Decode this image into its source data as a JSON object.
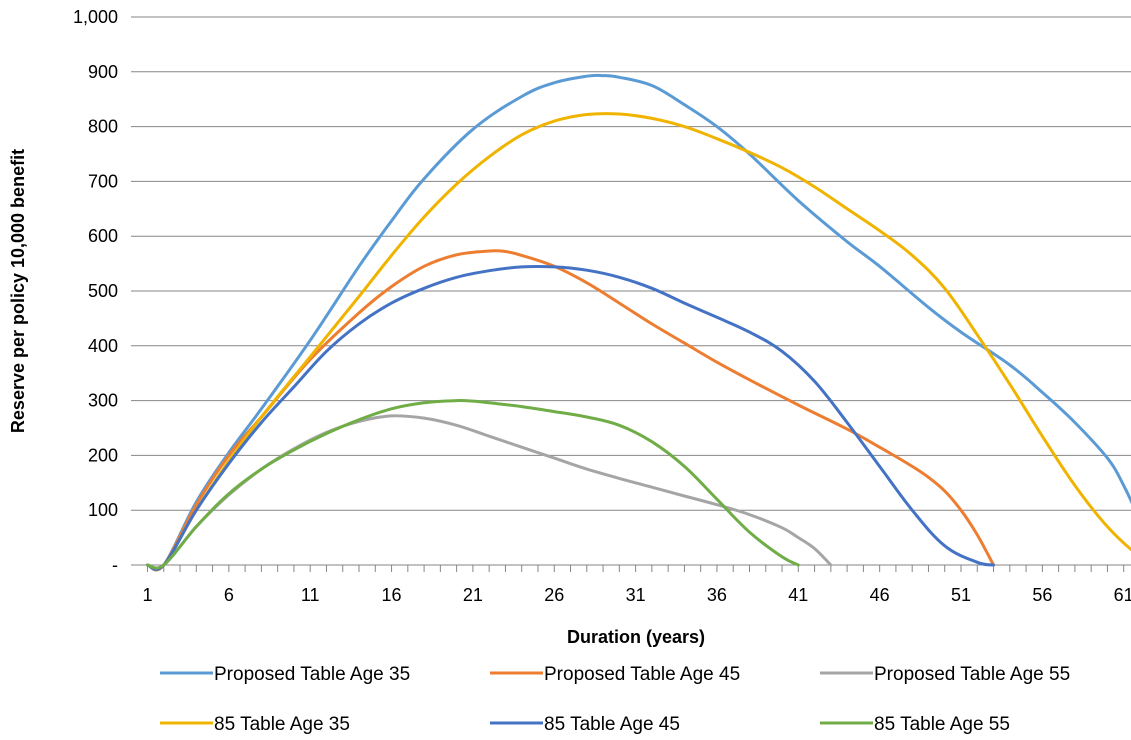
{
  "chart_data": {
    "type": "line",
    "xlabel": "Duration (years)",
    "ylabel": "Reserve per policy 10,000 benefit",
    "xlim": [
      1,
      63
    ],
    "ylim": [
      0,
      1000
    ],
    "x_tick_labels": [
      "1",
      "6",
      "11",
      "16",
      "21",
      "26",
      "31",
      "36",
      "41",
      "46",
      "51",
      "56",
      "61"
    ],
    "y_ticks": [
      {
        "value": 0,
        "label": "-"
      },
      {
        "value": 100,
        "label": "100"
      },
      {
        "value": 200,
        "label": "200"
      },
      {
        "value": 300,
        "label": "300"
      },
      {
        "value": 400,
        "label": "400"
      },
      {
        "value": 500,
        "label": "500"
      },
      {
        "value": 600,
        "label": "600"
      },
      {
        "value": 700,
        "label": "700"
      },
      {
        "value": 800,
        "label": "800"
      },
      {
        "value": 900,
        "label": "900"
      },
      {
        "value": 1000,
        "label": "1,000"
      }
    ],
    "grid": "horizontal",
    "legend_position": "bottom",
    "series": [
      {
        "name": "Proposed Table Age 35",
        "color": "#5B9BD5",
        "x": [
          1,
          2,
          4,
          6,
          8,
          11,
          14,
          16,
          18,
          21,
          24,
          26,
          28,
          29,
          30,
          32,
          34,
          36,
          38,
          41,
          44,
          46,
          49,
          51,
          54,
          56,
          58,
          60,
          61,
          62,
          63
        ],
        "y": [
          0,
          0,
          115,
          205,
          285,
          410,
          545,
          628,
          705,
          795,
          855,
          880,
          892,
          893,
          890,
          875,
          840,
          800,
          750,
          665,
          590,
          545,
          470,
          425,
          365,
          315,
          260,
          195,
          145,
          80,
          0
        ]
      },
      {
        "name": "Proposed Table Age 45",
        "color": "#ED7D31",
        "x": [
          1,
          2,
          4,
          6,
          8,
          11,
          14,
          16,
          18,
          20,
          22,
          23,
          24,
          26,
          28,
          30,
          32,
          34,
          36,
          38,
          41,
          44,
          46,
          48,
          49,
          50,
          51,
          52,
          53
        ],
        "y": [
          0,
          0,
          110,
          200,
          270,
          375,
          460,
          508,
          545,
          566,
          573,
          572,
          565,
          545,
          515,
          478,
          440,
          405,
          370,
          338,
          292,
          248,
          215,
          180,
          160,
          135,
          100,
          55,
          0
        ]
      },
      {
        "name": "Proposed Table Age 55",
        "color": "#A5A5A5",
        "x": [
          1,
          2,
          4,
          6,
          8,
          10,
          12,
          14,
          16,
          18,
          20,
          22,
          24,
          26,
          28,
          30,
          32,
          34,
          36,
          38,
          40,
          41,
          42,
          43
        ],
        "y": [
          0,
          0,
          70,
          128,
          175,
          212,
          242,
          262,
          272,
          268,
          255,
          235,
          215,
          195,
          175,
          158,
          142,
          126,
          110,
          92,
          68,
          50,
          30,
          0
        ]
      },
      {
        "name": "85 Table Age 35",
        "color": "#F0B400",
        "x": [
          1,
          2,
          4,
          6,
          8,
          11,
          14,
          16,
          18,
          20,
          22,
          24,
          26,
          28,
          30,
          32,
          34,
          36,
          38,
          40,
          42,
          44,
          46,
          48,
          50,
          52,
          54,
          56,
          58,
          60,
          62,
          63
        ],
        "y": [
          0,
          0,
          100,
          190,
          270,
          380,
          490,
          565,
          635,
          695,
          745,
          785,
          810,
          822,
          823,
          815,
          800,
          778,
          753,
          725,
          690,
          650,
          610,
          565,
          505,
          420,
          330,
          235,
          145,
          70,
          15,
          0
        ]
      },
      {
        "name": "85 Table Age 45",
        "color": "#4472C4",
        "x": [
          1,
          2,
          4,
          6,
          8,
          10,
          12,
          14,
          16,
          18,
          20,
          22,
          24,
          26,
          28,
          30,
          32,
          34,
          36,
          38,
          40,
          42,
          44,
          46,
          48,
          50,
          52,
          53
        ],
        "y": [
          0,
          0,
          100,
          185,
          260,
          325,
          390,
          440,
          478,
          505,
          525,
          537,
          544,
          544,
          538,
          525,
          505,
          478,
          452,
          425,
          390,
          335,
          260,
          180,
          100,
          35,
          5,
          0
        ]
      },
      {
        "name": "85 Table Age 55",
        "color": "#70AD47",
        "x": [
          1,
          2,
          4,
          6,
          8,
          10,
          12,
          14,
          16,
          18,
          20,
          21,
          22,
          24,
          26,
          28,
          30,
          32,
          34,
          36,
          38,
          40,
          41
        ],
        "y": [
          0,
          0,
          70,
          130,
          175,
          210,
          240,
          265,
          285,
          296,
          300,
          299,
          296,
          289,
          280,
          270,
          255,
          225,
          180,
          120,
          60,
          15,
          0
        ]
      }
    ]
  }
}
